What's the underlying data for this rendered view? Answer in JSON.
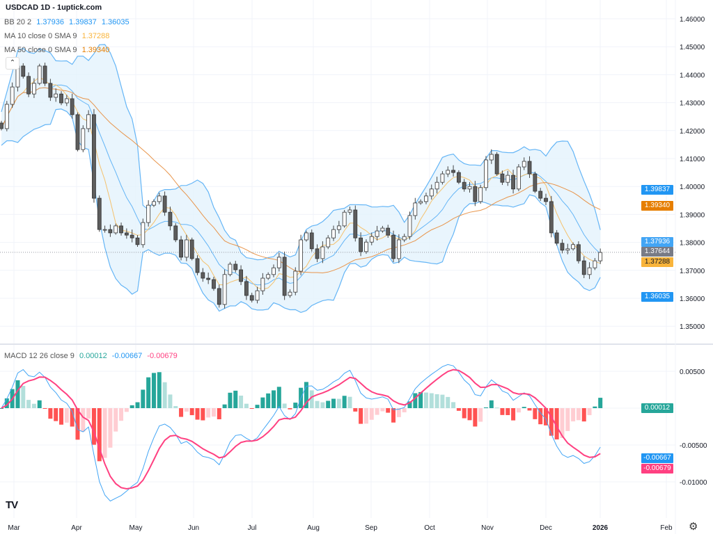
{
  "header": {
    "title": "USDCAD 1D - 1uptick.com"
  },
  "legend": {
    "bb": {
      "label": "BB 20 2",
      "middle": "1.37936",
      "upper": "1.39837",
      "lower": "1.36035"
    },
    "ma10": {
      "label": "MA 10 close 0 SMA 9",
      "value": "1.37288"
    },
    "ma50": {
      "label": "MA 50 close 0 SMA 9",
      "value": "1.39340"
    },
    "macd": {
      "label": "MACD 12 26 close 9",
      "hist": "0.00012",
      "macd": "-0.00667",
      "signal": "-0.00679"
    }
  },
  "price_tags": [
    {
      "value": "1.39837",
      "color": "#2196f3"
    },
    {
      "value": "1.39340",
      "color": "#e67e00"
    },
    {
      "value": "1.37936",
      "color": "#42a5f5"
    },
    {
      "value": "1.37644",
      "color": "#787b86"
    },
    {
      "value": "1.37288",
      "color": "#f9b43a"
    },
    {
      "value": "1.36035",
      "color": "#2196f3"
    }
  ],
  "macd_tags": [
    {
      "value": "0.00012",
      "color": "#26a69a"
    },
    {
      "value": "-0.00667",
      "color": "#2196f3"
    },
    {
      "value": "-0.00679",
      "color": "#ff4081"
    }
  ],
  "colors": {
    "band_line": "#64b5f6",
    "band_fill": "#e3f2fd",
    "ma10": "#f5c16c",
    "ma50": "#e8944a",
    "macd": "#42a5f5",
    "signal": "#ff4081",
    "up_body": "#ffffff",
    "down_body": "#5d5d5d",
    "hist_up_strong": "#26a69a",
    "hist_up_weak": "#b2dfdb",
    "hist_down_strong": "#ff5252",
    "hist_down_weak": "#ffcdd2"
  },
  "icons": {
    "collapse": "chevron-up-icon",
    "settings": "gear-icon",
    "logo": "tradingview-logo"
  },
  "logo_text": "TV",
  "chart_data": {
    "type": "candlestick",
    "symbol": "USDCAD",
    "interval": "1D",
    "price_axis": {
      "ticks": [
        "1.46000",
        "1.45000",
        "1.44000",
        "1.43000",
        "1.42000",
        "1.41000",
        "1.40000",
        "1.39000",
        "1.38000",
        "1.37000",
        "1.36000",
        "1.35000"
      ],
      "range": [
        1.35,
        1.46
      ]
    },
    "macd_axis": {
      "ticks": [
        "0.00500",
        "-0.00500",
        "-0.01000"
      ],
      "range": [
        -0.0115,
        0.0065
      ]
    },
    "time_axis": [
      "Mar",
      "Apr",
      "May",
      "Jun",
      "Jul",
      "Aug",
      "Sep",
      "Oct",
      "Nov",
      "Dec",
      "2026",
      "Feb"
    ],
    "last_price": 1.37644,
    "closes": [
      1.4207,
      1.4294,
      1.4356,
      1.4431,
      1.4394,
      1.4331,
      1.4369,
      1.4431,
      1.4369,
      1.4319,
      1.4331,
      1.4299,
      1.4314,
      1.4257,
      1.4132,
      1.4207,
      1.4257,
      1.3958,
      1.3846,
      1.3846,
      1.3834,
      1.3859,
      1.3834,
      1.3826,
      1.3816,
      1.3792,
      1.3871,
      1.3933,
      1.3946,
      1.3966,
      1.3908,
      1.3859,
      1.3809,
      1.3747,
      1.3809,
      1.3742,
      1.3692,
      1.3672,
      1.3667,
      1.3635,
      1.3578,
      1.3685,
      1.3722,
      1.3702,
      1.366,
      1.361,
      1.3593,
      1.3627,
      1.3672,
      1.3685,
      1.3709,
      1.3747,
      1.361,
      1.3622,
      1.3697,
      1.3809,
      1.3834,
      1.3777,
      1.3742,
      1.3784,
      1.3816,
      1.3846,
      1.3859,
      1.3908,
      1.3916,
      1.3816,
      1.3767,
      1.3801,
      1.3821,
      1.3841,
      1.3851,
      1.3826,
      1.3742,
      1.3809,
      1.3821,
      1.3896,
      1.3941,
      1.3946,
      1.3966,
      1.3991,
      1.4015,
      1.4045,
      1.4058,
      1.405,
      1.4015,
      1.3991,
      1.4,
      1.3946,
      1.3996,
      1.4095,
      1.4115,
      1.4045,
      1.4015,
      1.404,
      1.3991,
      1.407,
      1.409,
      1.4045,
      1.3983,
      1.3958,
      1.3946,
      1.3834,
      1.3797,
      1.3772,
      1.3777,
      1.3792,
      1.3734,
      1.3685,
      1.3709,
      1.3734,
      1.3764
    ],
    "indicators": [
      "BB 20 2",
      "MA 10",
      "MA 50",
      "MACD 12 26 9"
    ]
  }
}
